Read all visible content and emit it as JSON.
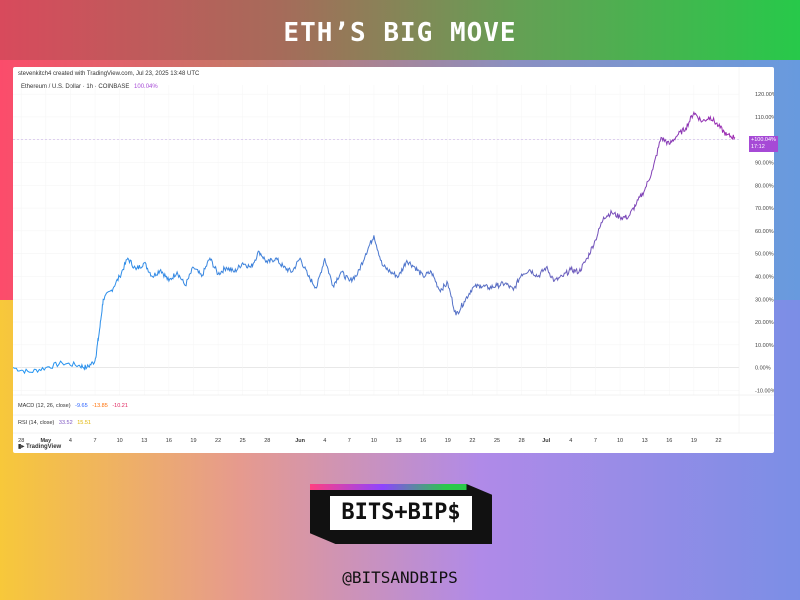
{
  "headline": "ETH’S BIG MOVE",
  "chart_header": {
    "credit": "stevenkitch4 created with TradingView.com, Jul 23, 2025 13:48 UTC",
    "symbol": "Ethereum / U.S. Dollar · 1h · COINBASE",
    "symbol_change": "100.04%",
    "current_badge": "+100.04%",
    "current_badge_sub": "17:12"
  },
  "indicators": {
    "macd": {
      "label": "MACD (12, 26, close)",
      "v1": "-9.65",
      "v2": "-13.85",
      "v3": "-10.21"
    },
    "rsi": {
      "label": "RSI (14, close)",
      "v1": "33.52",
      "v2": "15.51"
    }
  },
  "brand_label": "TradingView",
  "logo_text": "BITS+BIP$",
  "handle": "@BITSANDBIPS",
  "colors": {
    "line_start": "#2196f3",
    "line_end": "#9c27b0",
    "badge": "#a64ad6"
  },
  "chart_data": {
    "type": "line",
    "ylim": [
      -12,
      124
    ],
    "y_ticks": [
      "120.00%",
      "110.00%",
      "100.00%",
      "90.00%",
      "80.00%",
      "70.00%",
      "60.00%",
      "50.00%",
      "40.00%",
      "30.00%",
      "20.00%",
      "10.00%",
      "0.00%",
      "-10.00%"
    ],
    "y_tick_values": [
      120,
      110,
      100,
      90,
      80,
      70,
      60,
      50,
      40,
      30,
      20,
      10,
      0,
      -10
    ],
    "x_ticks": [
      "28",
      "May",
      "4",
      "7",
      "10",
      "13",
      "16",
      "19",
      "22",
      "25",
      "28",
      "Jun",
      "4",
      "7",
      "10",
      "13",
      "16",
      "19",
      "22",
      "25",
      "28",
      "Jul",
      "4",
      "7",
      "10",
      "13",
      "16",
      "19",
      "22"
    ],
    "x_tick_days": [
      0,
      3,
      6,
      9,
      12,
      15,
      18,
      21,
      24,
      27,
      30,
      34,
      37,
      40,
      43,
      46,
      49,
      52,
      55,
      58,
      61,
      64,
      67,
      70,
      73,
      76,
      79,
      82,
      85
    ],
    "xlim": [
      -1,
      87.5
    ],
    "reference_line": 100,
    "series": [
      {
        "x": [
          -1,
          1,
          3,
          5,
          7,
          8,
          9,
          9.5,
          10,
          11,
          12,
          13,
          14,
          15,
          16,
          17,
          18,
          19,
          20,
          21,
          22,
          23,
          24,
          25,
          26,
          27,
          28,
          29,
          30,
          31,
          32,
          33,
          34,
          35,
          36,
          37,
          38,
          39,
          40,
          41,
          42,
          43,
          44,
          45,
          46,
          47,
          48,
          49,
          50,
          51,
          52,
          53,
          54,
          55,
          56,
          57,
          58,
          59,
          60,
          61,
          62,
          63,
          64,
          65,
          66,
          67,
          68,
          69,
          70,
          71,
          72,
          73,
          74,
          75,
          76,
          77,
          78,
          79,
          80,
          81,
          82,
          83,
          84,
          85,
          86,
          87
        ],
        "y": [
          0,
          -2,
          0,
          2,
          1,
          0,
          3,
          15,
          30,
          34,
          40,
          48,
          43,
          46,
          40,
          43,
          38,
          42,
          36,
          44,
          40,
          48,
          41,
          44,
          42,
          46,
          44,
          51,
          46,
          48,
          44,
          42,
          48,
          40,
          35,
          48,
          36,
          42,
          38,
          41,
          50,
          58,
          45,
          42,
          40,
          47,
          44,
          40,
          42,
          34,
          37,
          23,
          29,
          35,
          36,
          35,
          36,
          37,
          34,
          41,
          43,
          40,
          44,
          38,
          40,
          43,
          42,
          48,
          56,
          66,
          68,
          66,
          66,
          72,
          78,
          87,
          101,
          98,
          102,
          105,
          112,
          108,
          110,
          106,
          102,
          101
        ]
      }
    ]
  }
}
